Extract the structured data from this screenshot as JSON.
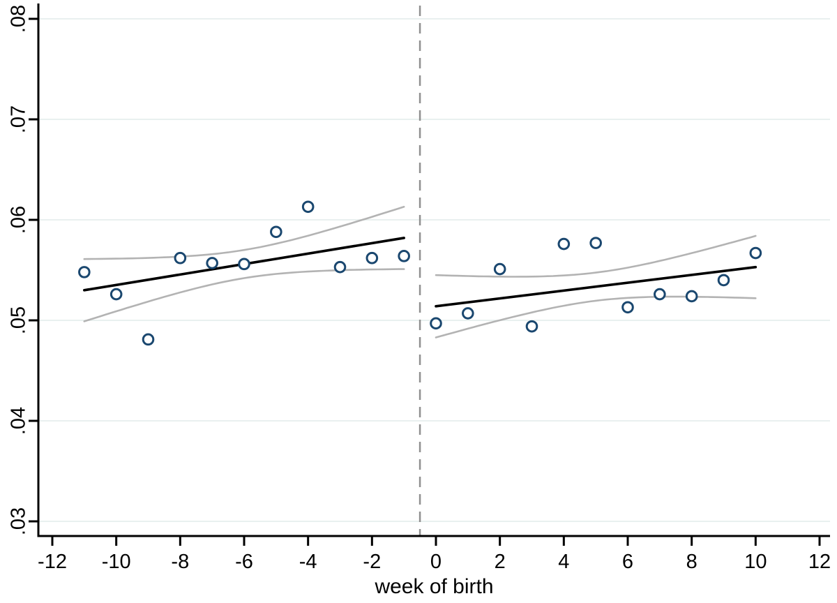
{
  "chart_data": {
    "type": "scatter",
    "title": "",
    "xlabel": "week of birth",
    "ylabel": "",
    "xlim": [
      -12,
      12
    ],
    "ylim": [
      0.03,
      0.08
    ],
    "grid": "horizontal",
    "legend": "none",
    "cutoff_x": -0.5,
    "x_ticks": {
      "values": [
        -12,
        -10,
        -8,
        -6,
        -4,
        -2,
        0,
        2,
        4,
        6,
        8,
        10,
        12
      ],
      "labels": [
        "-12",
        "-10",
        "-8",
        "-6",
        "-4",
        "-2",
        "0",
        "2",
        "4",
        "6",
        "8",
        "10",
        "12"
      ]
    },
    "y_ticks": {
      "values": [
        0.03,
        0.04,
        0.05,
        0.06,
        0.07,
        0.08
      ],
      "labels": [
        ".03",
        ".04",
        ".05",
        ".06",
        ".07",
        ".08"
      ]
    },
    "series": [
      {
        "name": "scatter-left",
        "type": "scatter",
        "x": [
          -11,
          -10,
          -9,
          -8,
          -7,
          -6,
          -5,
          -4,
          -3,
          -2,
          -1
        ],
        "y": [
          0.0548,
          0.0526,
          0.0481,
          0.0562,
          0.0557,
          0.0556,
          0.0588,
          0.0613,
          0.0553,
          0.0562,
          0.0564
        ]
      },
      {
        "name": "scatter-right",
        "type": "scatter",
        "x": [
          0,
          1,
          2,
          3,
          4,
          5,
          6,
          7,
          8,
          9,
          10
        ],
        "y": [
          0.0497,
          0.0507,
          0.0551,
          0.0494,
          0.0576,
          0.0577,
          0.0513,
          0.0526,
          0.0524,
          0.054,
          0.0567
        ]
      },
      {
        "name": "fit-left",
        "type": "line",
        "x": [
          -11,
          -1
        ],
        "y": [
          0.053,
          0.0582
        ]
      },
      {
        "name": "fit-right",
        "type": "line",
        "x": [
          0,
          10
        ],
        "y": [
          0.0514,
          0.0553
        ]
      },
      {
        "name": "ci-left",
        "type": "ci",
        "x_range": [
          -11,
          -1
        ],
        "line_y": [
          0.053,
          0.0582
        ],
        "half_width_mid": 0.0014,
        "half_width_end": 0.0031
      },
      {
        "name": "ci-right",
        "type": "ci",
        "x_range": [
          0,
          10
        ],
        "line_y": [
          0.0514,
          0.0553
        ],
        "half_width_mid": 0.0014,
        "half_width_end": 0.0031
      }
    ],
    "colors": {
      "marker_stroke": "#1a476f",
      "marker_fill": "#ffffff",
      "fit_line": "#000000",
      "ci_line": "#b3b3b3",
      "gridline": "#e9f0ef",
      "cutoff_line": "#909090",
      "axis": "#000000",
      "background": "#ffffff"
    }
  }
}
